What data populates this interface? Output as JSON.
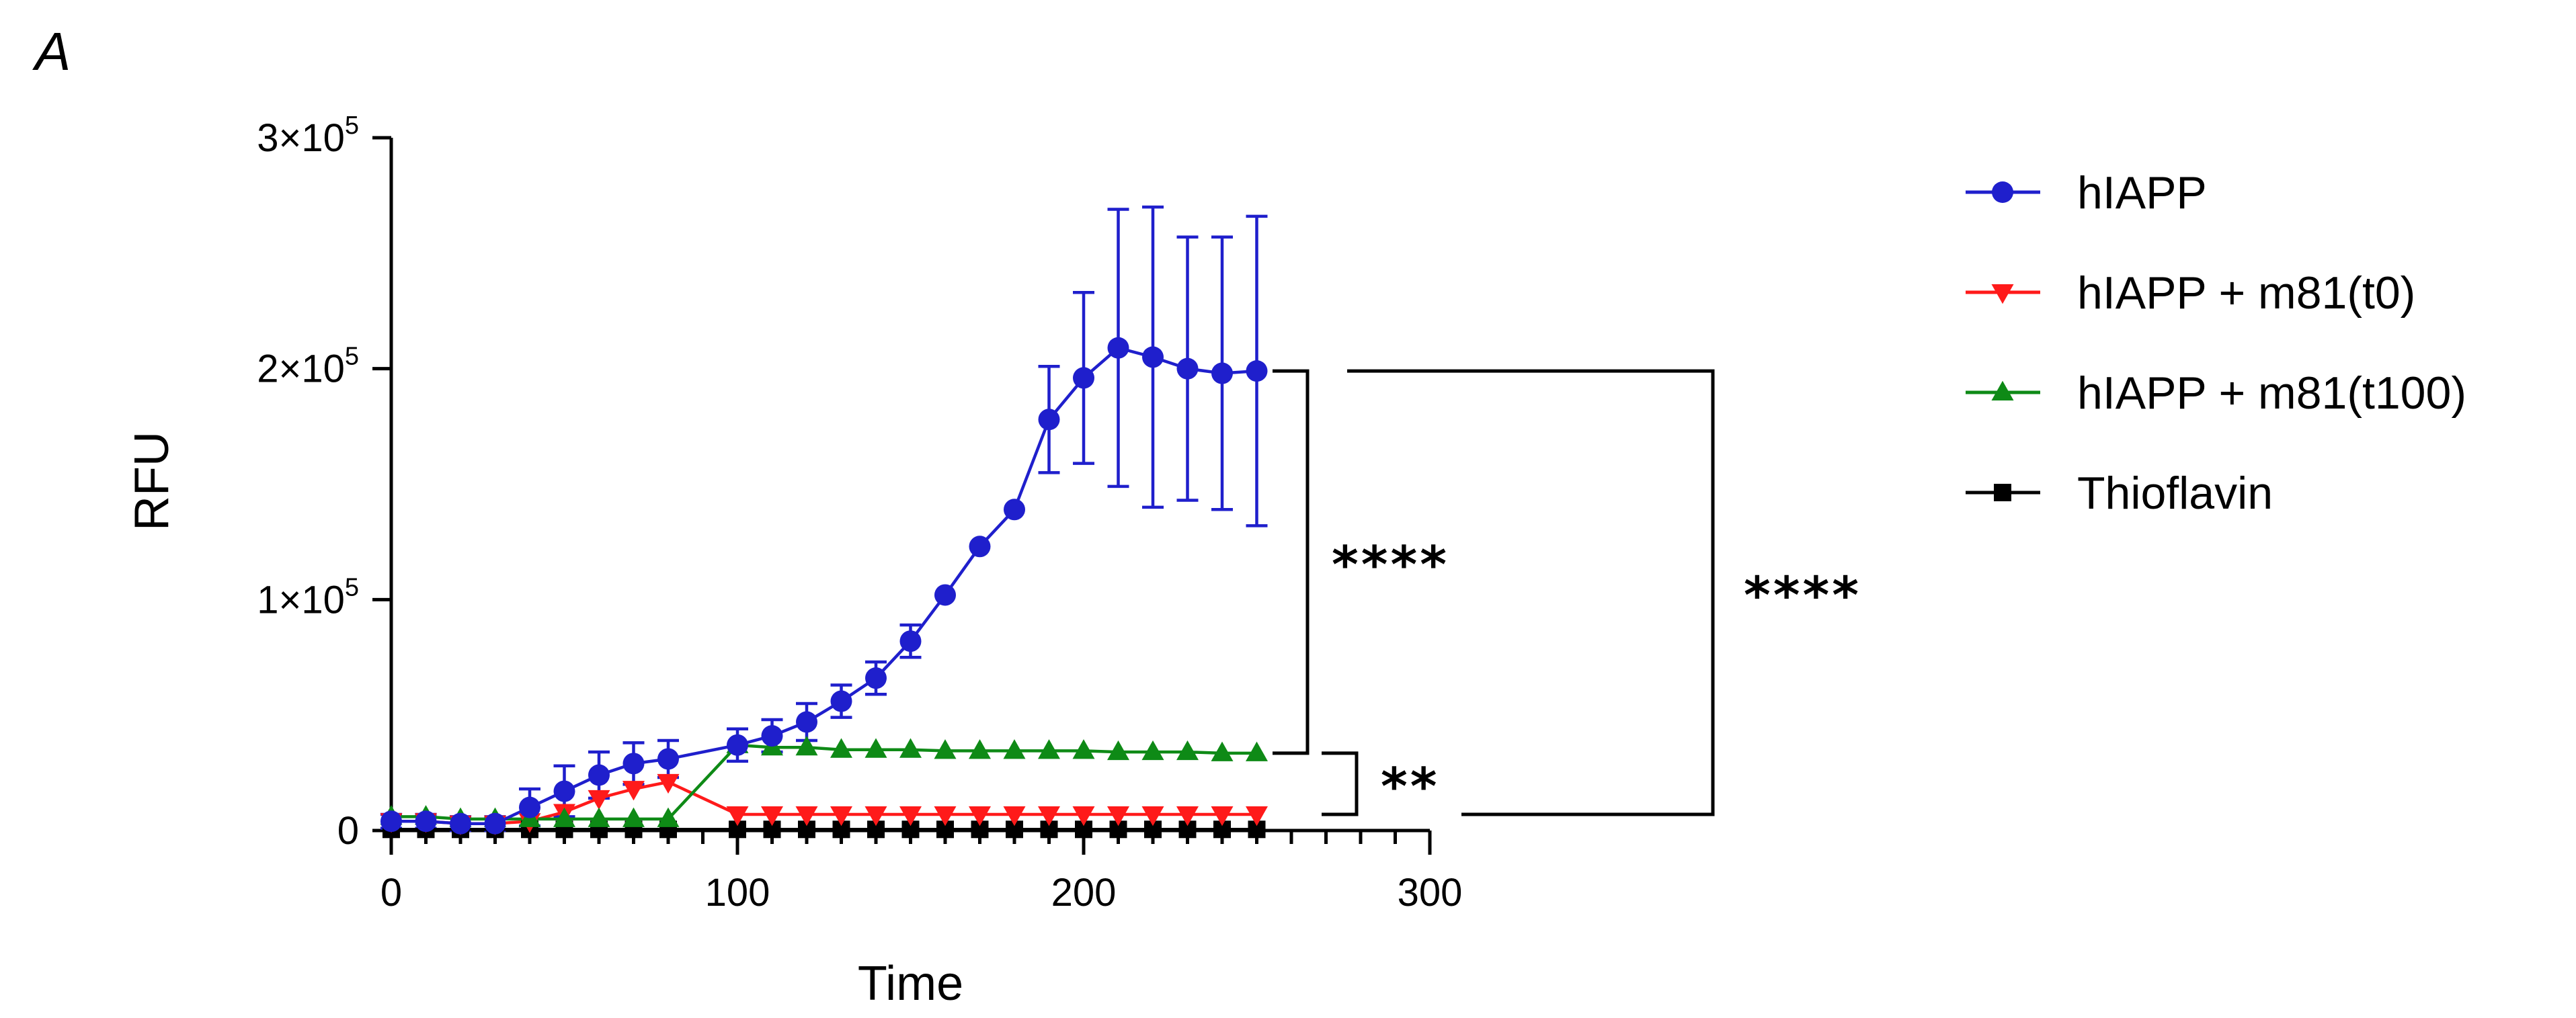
{
  "panel_label": "A",
  "chart_data": {
    "type": "line",
    "title": "",
    "xlabel": "Time",
    "ylabel": "RFU",
    "xlim": [
      0,
      300
    ],
    "ylim": [
      0,
      300000
    ],
    "x_ticks": [
      {
        "value": 0,
        "label": "0"
      },
      {
        "value": 100,
        "label": "100"
      },
      {
        "value": 200,
        "label": "200"
      },
      {
        "value": 300,
        "label": "300"
      }
    ],
    "x_minor_step": 10,
    "y_ticks": [
      {
        "value": 0,
        "base": "0",
        "exp": ""
      },
      {
        "value": 100000,
        "base": "1×10",
        "exp": "5"
      },
      {
        "value": 200000,
        "base": "2×10",
        "exp": "5"
      },
      {
        "value": 300000,
        "base": "3×10",
        "exp": "5"
      }
    ],
    "x": [
      0,
      10,
      20,
      30,
      40,
      50,
      60,
      70,
      80,
      100,
      110,
      120,
      130,
      140,
      150,
      160,
      170,
      180,
      190,
      200,
      210,
      220,
      230,
      240,
      250
    ],
    "grid": false,
    "legend_position": "right",
    "series": [
      {
        "name": "hIAPP",
        "color": "#1f1fcc",
        "marker": "circle",
        "values": [
          4000,
          4000,
          3000,
          3000,
          10000,
          17000,
          24000,
          29000,
          31000,
          37000,
          41000,
          47000,
          56000,
          66000,
          82000,
          102000,
          123000,
          139000,
          178000,
          196000,
          209000,
          205000,
          200000,
          198000,
          199000
        ],
        "errors": [
          3000,
          3000,
          3000,
          3000,
          8000,
          11000,
          10000,
          9000,
          8000,
          7000,
          7000,
          8000,
          7000,
          7000,
          7000,
          0,
          0,
          0,
          23000,
          37000,
          60000,
          65000,
          57000,
          59000,
          67000
        ]
      },
      {
        "name": "hIAPP + m81(t0)",
        "color": "#ff1a1a",
        "marker": "triangle-down",
        "values": [
          4000,
          4000,
          3000,
          3000,
          4000,
          8000,
          14000,
          18000,
          21000,
          7000,
          7000,
          7000,
          7000,
          7000,
          7000,
          7000,
          7000,
          7000,
          7000,
          7000,
          7000,
          7000,
          7000,
          7000,
          7000
        ],
        "errors": [
          0,
          0,
          0,
          0,
          0,
          0,
          0,
          0,
          0,
          0,
          0,
          0,
          0,
          0,
          0,
          0,
          0,
          0,
          0,
          0,
          0,
          0,
          0,
          0,
          0
        ]
      },
      {
        "name": "hIAPP + m81(t100)",
        "color": "#0e8a16",
        "marker": "triangle-up",
        "values": [
          6000,
          6000,
          5000,
          5000,
          5000,
          5000,
          5000,
          5000,
          5000,
          37000,
          36000,
          36000,
          35000,
          35000,
          35000,
          34500,
          34500,
          34500,
          34500,
          34500,
          34000,
          34000,
          34000,
          33500,
          33500
        ],
        "errors": [
          0,
          0,
          0,
          0,
          0,
          0,
          0,
          0,
          0,
          0,
          0,
          0,
          0,
          0,
          0,
          0,
          0,
          0,
          0,
          0,
          0,
          0,
          0,
          0,
          0
        ]
      },
      {
        "name": "Thioflavin",
        "color": "#000000",
        "marker": "square",
        "values": [
          500,
          500,
          500,
          500,
          500,
          500,
          500,
          500,
          500,
          500,
          500,
          500,
          500,
          500,
          500,
          500,
          500,
          500,
          500,
          500,
          500,
          500,
          500,
          500,
          500
        ],
        "errors": [
          0,
          0,
          0,
          0,
          0,
          0,
          0,
          0,
          0,
          0,
          0,
          0,
          0,
          0,
          0,
          0,
          0,
          0,
          0,
          0,
          0,
          0,
          0,
          0,
          0
        ]
      }
    ],
    "annotations": [
      {
        "label": "****",
        "from_series": "hIAPP",
        "to_series": "hIAPP + m81(t100)",
        "bracket": "inner"
      },
      {
        "label": "**",
        "from_series": "hIAPP + m81(t100)",
        "to_series": "hIAPP + m81(t0)",
        "bracket": "inner"
      },
      {
        "label": "****",
        "from_series": "hIAPP",
        "to_series": "hIAPP + m81(t0)",
        "bracket": "outer"
      }
    ]
  }
}
